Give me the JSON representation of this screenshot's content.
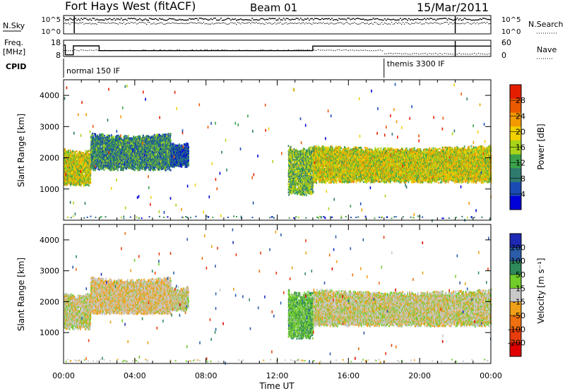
{
  "header": {
    "radar": "Fort Hays West (fitACF)",
    "beam": "Beam 01",
    "date": "15/Mar/2011"
  },
  "noise_panel": {
    "left_label": "N.Sky",
    "left_ticks": [
      "10^5",
      "10^0"
    ],
    "right_label": "N.Search",
    "right_ticks": [
      "10^5",
      "10^0"
    ]
  },
  "freq_panel": {
    "left_label_1": "Freq.",
    "left_label_2": "[MHz]",
    "left_ticks": [
      18,
      8
    ],
    "right_label": "Nave",
    "right_ticks": [
      60,
      0
    ],
    "freq_steps": [
      {
        "t0": 0.0,
        "t1": 0.1,
        "mhz": 15.0
      },
      {
        "t0": 0.1,
        "t1": 0.55,
        "mhz": 9.0
      },
      {
        "t0": 0.55,
        "t1": 2.0,
        "mhz": 14.5
      },
      {
        "t0": 2.0,
        "t1": 14.0,
        "mhz": 11.6
      },
      {
        "t0": 14.0,
        "t1": 24.0,
        "mhz": 14.4
      }
    ]
  },
  "cpid": {
    "label": "CPID",
    "segments": [
      {
        "start": 0.0,
        "text": "normal 150 IF"
      },
      {
        "start": 18.0,
        "text": "themis 3300 IF"
      }
    ]
  },
  "colors": {
    "power": [
      "#0000d8",
      "#1a4bb4",
      "#2f7a6e",
      "#3ba24a",
      "#a8d41a",
      "#f0d000",
      "#f29a00",
      "#ec5a00",
      "#e61e00"
    ],
    "velocity": [
      "#1e2ab4",
      "#2a5ca8",
      "#2e8a5a",
      "#72cc2a",
      "#c8c8c8",
      "#f0a018",
      "#ee7010",
      "#e83c0c",
      "#e00000"
    ]
  },
  "power_colorbar": {
    "label": "Power [dB]",
    "ticks": [
      "28",
      "24",
      "20",
      "16",
      "12",
      "8",
      "4"
    ]
  },
  "velocity_colorbar": {
    "label": "Velocity [m s⁻¹]",
    "ticks": [
      "200",
      "100",
      "50",
      "15",
      "-15",
      "-50",
      "-100",
      "-200"
    ]
  },
  "chart_data": {
    "type": "heatmap",
    "xlabel": "Time UT",
    "ylabel": "Slant Range [km]",
    "xlim": [
      0,
      24
    ],
    "ylim": [
      0,
      4500
    ],
    "x_ticks": [
      "00:00",
      "04:00",
      "08:00",
      "12:00",
      "16:00",
      "20:00",
      "00:00"
    ],
    "y_ticks": [
      "1000",
      "2000",
      "3000",
      "4000"
    ],
    "echo_bands": [
      {
        "t0": 0.0,
        "t1": 1.5,
        "range_low": 1200,
        "range_high": 2300,
        "power_db": 18,
        "velocity": 0
      },
      {
        "t0": 1.5,
        "t1": 6.0,
        "range_low": 1700,
        "range_high": 2800,
        "power_db": 10,
        "velocity": -10
      },
      {
        "t0": 6.0,
        "t1": 7.0,
        "range_low": 1800,
        "range_high": 2500,
        "power_db": 6,
        "velocity": 0
      },
      {
        "t0": 12.6,
        "t1": 14.0,
        "range_low": 900,
        "range_high": 2400,
        "power_db": 14,
        "velocity": 40
      },
      {
        "t0": 14.0,
        "t1": 24.0,
        "range_low": 1300,
        "range_high": 2400,
        "power_db": 18,
        "velocity": 0
      }
    ],
    "panels": [
      {
        "parameter": "power",
        "unit": "dB",
        "range": [
          0,
          32
        ]
      },
      {
        "parameter": "velocity",
        "unit": "m s-1",
        "range": [
          -250,
          250
        ]
      }
    ]
  }
}
